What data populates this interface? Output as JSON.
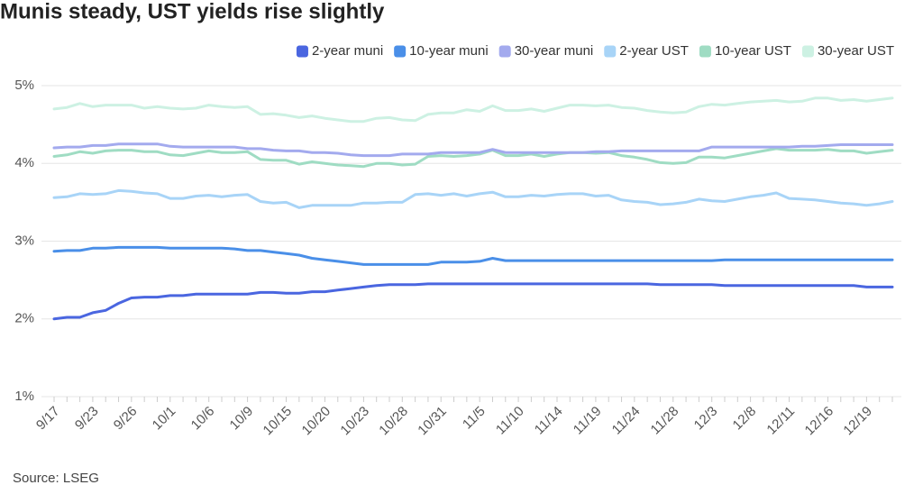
{
  "chart_data": {
    "type": "line",
    "title": "Munis steady, UST yields rise slightly",
    "source": "Source: LSEG",
    "categories": [
      "9/17",
      null,
      null,
      "9/23",
      null,
      null,
      "9/26",
      null,
      null,
      "10/1",
      null,
      null,
      "10/6",
      null,
      null,
      "10/9",
      null,
      null,
      "10/15",
      null,
      null,
      "10/20",
      null,
      null,
      "10/23",
      null,
      null,
      "10/28",
      null,
      null,
      "10/31",
      null,
      null,
      "11/5",
      null,
      null,
      "11/10",
      null,
      null,
      "11/14",
      null,
      null,
      "11/19",
      null,
      null,
      "11/24",
      null,
      null,
      "11/28",
      null,
      null,
      "12/3",
      null,
      null,
      "12/8",
      null,
      null,
      "12/11",
      null,
      null,
      "12/16",
      null,
      null,
      "12/19",
      null,
      null
    ],
    "ylim": [
      1,
      5
    ],
    "yticks": [
      {
        "value": 1,
        "label": "1%"
      },
      {
        "value": 2,
        "label": "2%"
      },
      {
        "value": 3,
        "label": "3%"
      },
      {
        "value": 4,
        "label": "4%"
      },
      {
        "value": 5,
        "label": "5%"
      }
    ],
    "grid": true,
    "legend": "top-right",
    "series": [
      {
        "name": "2-year muni",
        "color": "#4a66e0",
        "values": [
          2.0,
          2.02,
          2.02,
          2.08,
          2.11,
          2.2,
          2.27,
          2.28,
          2.28,
          2.3,
          2.3,
          2.32,
          2.32,
          2.32,
          2.32,
          2.32,
          2.34,
          2.34,
          2.33,
          2.33,
          2.35,
          2.35,
          2.37,
          2.39,
          2.41,
          2.43,
          2.44,
          2.44,
          2.44,
          2.45,
          2.45,
          2.45,
          2.45,
          2.45,
          2.45,
          2.45,
          2.45,
          2.45,
          2.45,
          2.45,
          2.45,
          2.45,
          2.45,
          2.45,
          2.45,
          2.45,
          2.45,
          2.44,
          2.44,
          2.44,
          2.44,
          2.44,
          2.43,
          2.43,
          2.43,
          2.43,
          2.43,
          2.43,
          2.43,
          2.43,
          2.43,
          2.43,
          2.43,
          2.41,
          2.41,
          2.41
        ]
      },
      {
        "name": "10-year muni",
        "color": "#4a8fe8",
        "values": [
          2.87,
          2.88,
          2.88,
          2.91,
          2.91,
          2.92,
          2.92,
          2.92,
          2.92,
          2.91,
          2.91,
          2.91,
          2.91,
          2.91,
          2.9,
          2.88,
          2.88,
          2.86,
          2.84,
          2.82,
          2.78,
          2.76,
          2.74,
          2.72,
          2.7,
          2.7,
          2.7,
          2.7,
          2.7,
          2.7,
          2.73,
          2.73,
          2.73,
          2.74,
          2.78,
          2.75,
          2.75,
          2.75,
          2.75,
          2.75,
          2.75,
          2.75,
          2.75,
          2.75,
          2.75,
          2.75,
          2.75,
          2.75,
          2.75,
          2.75,
          2.75,
          2.75,
          2.76,
          2.76,
          2.76,
          2.76,
          2.76,
          2.76,
          2.76,
          2.76,
          2.76,
          2.76,
          2.76,
          2.76,
          2.76,
          2.76
        ]
      },
      {
        "name": "30-year muni",
        "color": "#a3aaee",
        "values": [
          4.2,
          4.21,
          4.21,
          4.23,
          4.23,
          4.25,
          4.25,
          4.25,
          4.25,
          4.22,
          4.21,
          4.21,
          4.21,
          4.21,
          4.21,
          4.19,
          4.19,
          4.17,
          4.16,
          4.16,
          4.14,
          4.14,
          4.13,
          4.11,
          4.1,
          4.1,
          4.1,
          4.12,
          4.12,
          4.12,
          4.14,
          4.14,
          4.14,
          4.14,
          4.18,
          4.14,
          4.14,
          4.14,
          4.14,
          4.14,
          4.14,
          4.14,
          4.15,
          4.15,
          4.16,
          4.16,
          4.16,
          4.16,
          4.16,
          4.16,
          4.16,
          4.21,
          4.21,
          4.21,
          4.21,
          4.21,
          4.21,
          4.21,
          4.22,
          4.22,
          4.23,
          4.24,
          4.24,
          4.24,
          4.24,
          4.24
        ]
      },
      {
        "name": "2-year UST",
        "color": "#a8d4f7",
        "values": [
          3.56,
          3.57,
          3.61,
          3.6,
          3.61,
          3.65,
          3.64,
          3.62,
          3.61,
          3.55,
          3.55,
          3.58,
          3.59,
          3.57,
          3.59,
          3.6,
          3.51,
          3.49,
          3.5,
          3.43,
          3.46,
          3.46,
          3.46,
          3.46,
          3.49,
          3.49,
          3.5,
          3.5,
          3.6,
          3.61,
          3.59,
          3.61,
          3.58,
          3.61,
          3.63,
          3.57,
          3.57,
          3.59,
          3.58,
          3.6,
          3.61,
          3.61,
          3.58,
          3.59,
          3.53,
          3.51,
          3.5,
          3.47,
          3.48,
          3.5,
          3.54,
          3.52,
          3.51,
          3.54,
          3.57,
          3.59,
          3.62,
          3.55,
          3.54,
          3.53,
          3.51,
          3.49,
          3.48,
          3.46,
          3.48,
          3.51
        ]
      },
      {
        "name": "10-year UST",
        "color": "#9fdcc3",
        "values": [
          4.09,
          4.11,
          4.15,
          4.13,
          4.16,
          4.17,
          4.17,
          4.15,
          4.15,
          4.11,
          4.1,
          4.13,
          4.16,
          4.14,
          4.14,
          4.15,
          4.05,
          4.04,
          4.04,
          3.99,
          4.02,
          4.0,
          3.98,
          3.97,
          3.96,
          4.0,
          4.0,
          3.98,
          3.99,
          4.09,
          4.1,
          4.09,
          4.1,
          4.12,
          4.17,
          4.1,
          4.1,
          4.12,
          4.09,
          4.12,
          4.14,
          4.14,
          4.13,
          4.14,
          4.1,
          4.08,
          4.05,
          4.01,
          4.0,
          4.01,
          4.08,
          4.08,
          4.07,
          4.1,
          4.13,
          4.16,
          4.19,
          4.17,
          4.17,
          4.17,
          4.18,
          4.16,
          4.16,
          4.13,
          4.15,
          4.17
        ]
      },
      {
        "name": "30-year UST",
        "color": "#cdf1e3",
        "values": [
          4.7,
          4.72,
          4.77,
          4.73,
          4.75,
          4.75,
          4.75,
          4.71,
          4.73,
          4.71,
          4.7,
          4.71,
          4.75,
          4.73,
          4.72,
          4.73,
          4.63,
          4.64,
          4.62,
          4.59,
          4.61,
          4.58,
          4.56,
          4.54,
          4.54,
          4.58,
          4.59,
          4.56,
          4.55,
          4.63,
          4.65,
          4.65,
          4.69,
          4.67,
          4.74,
          4.68,
          4.68,
          4.7,
          4.67,
          4.71,
          4.75,
          4.75,
          4.74,
          4.75,
          4.72,
          4.71,
          4.68,
          4.66,
          4.65,
          4.66,
          4.73,
          4.76,
          4.75,
          4.77,
          4.79,
          4.8,
          4.81,
          4.79,
          4.8,
          4.84,
          4.84,
          4.81,
          4.82,
          4.8,
          4.82,
          4.84
        ]
      }
    ]
  }
}
